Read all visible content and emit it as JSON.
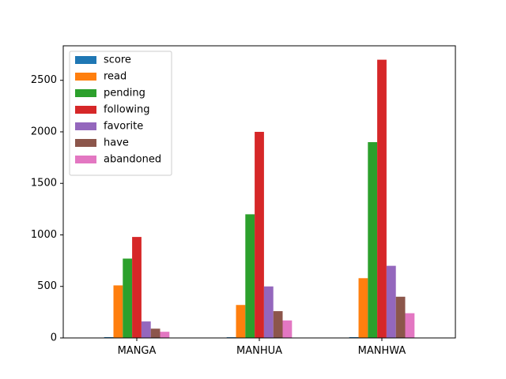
{
  "chart_data": {
    "type": "bar",
    "categories": [
      "MANGA",
      "MANHUA",
      "MANHWA"
    ],
    "series": [
      {
        "name": "score",
        "color": "#1f77b4",
        "values": [
          8,
          7,
          8
        ]
      },
      {
        "name": "read",
        "color": "#ff7f0e",
        "values": [
          510,
          320,
          580
        ]
      },
      {
        "name": "pending",
        "color": "#2ca02c",
        "values": [
          770,
          1200,
          1900
        ]
      },
      {
        "name": "following",
        "color": "#d62728",
        "values": [
          980,
          2000,
          2700
        ]
      },
      {
        "name": "favorite",
        "color": "#9467bd",
        "values": [
          160,
          500,
          700
        ]
      },
      {
        "name": "have",
        "color": "#8c564b",
        "values": [
          90,
          260,
          400
        ]
      },
      {
        "name": "abandoned",
        "color": "#e377c2",
        "values": [
          60,
          170,
          240
        ]
      }
    ],
    "ylim": [
      0,
      2835
    ],
    "yticks": [
      0,
      500,
      1000,
      1500,
      2000,
      2500
    ],
    "legend_position": "upper-left",
    "grid": false
  }
}
